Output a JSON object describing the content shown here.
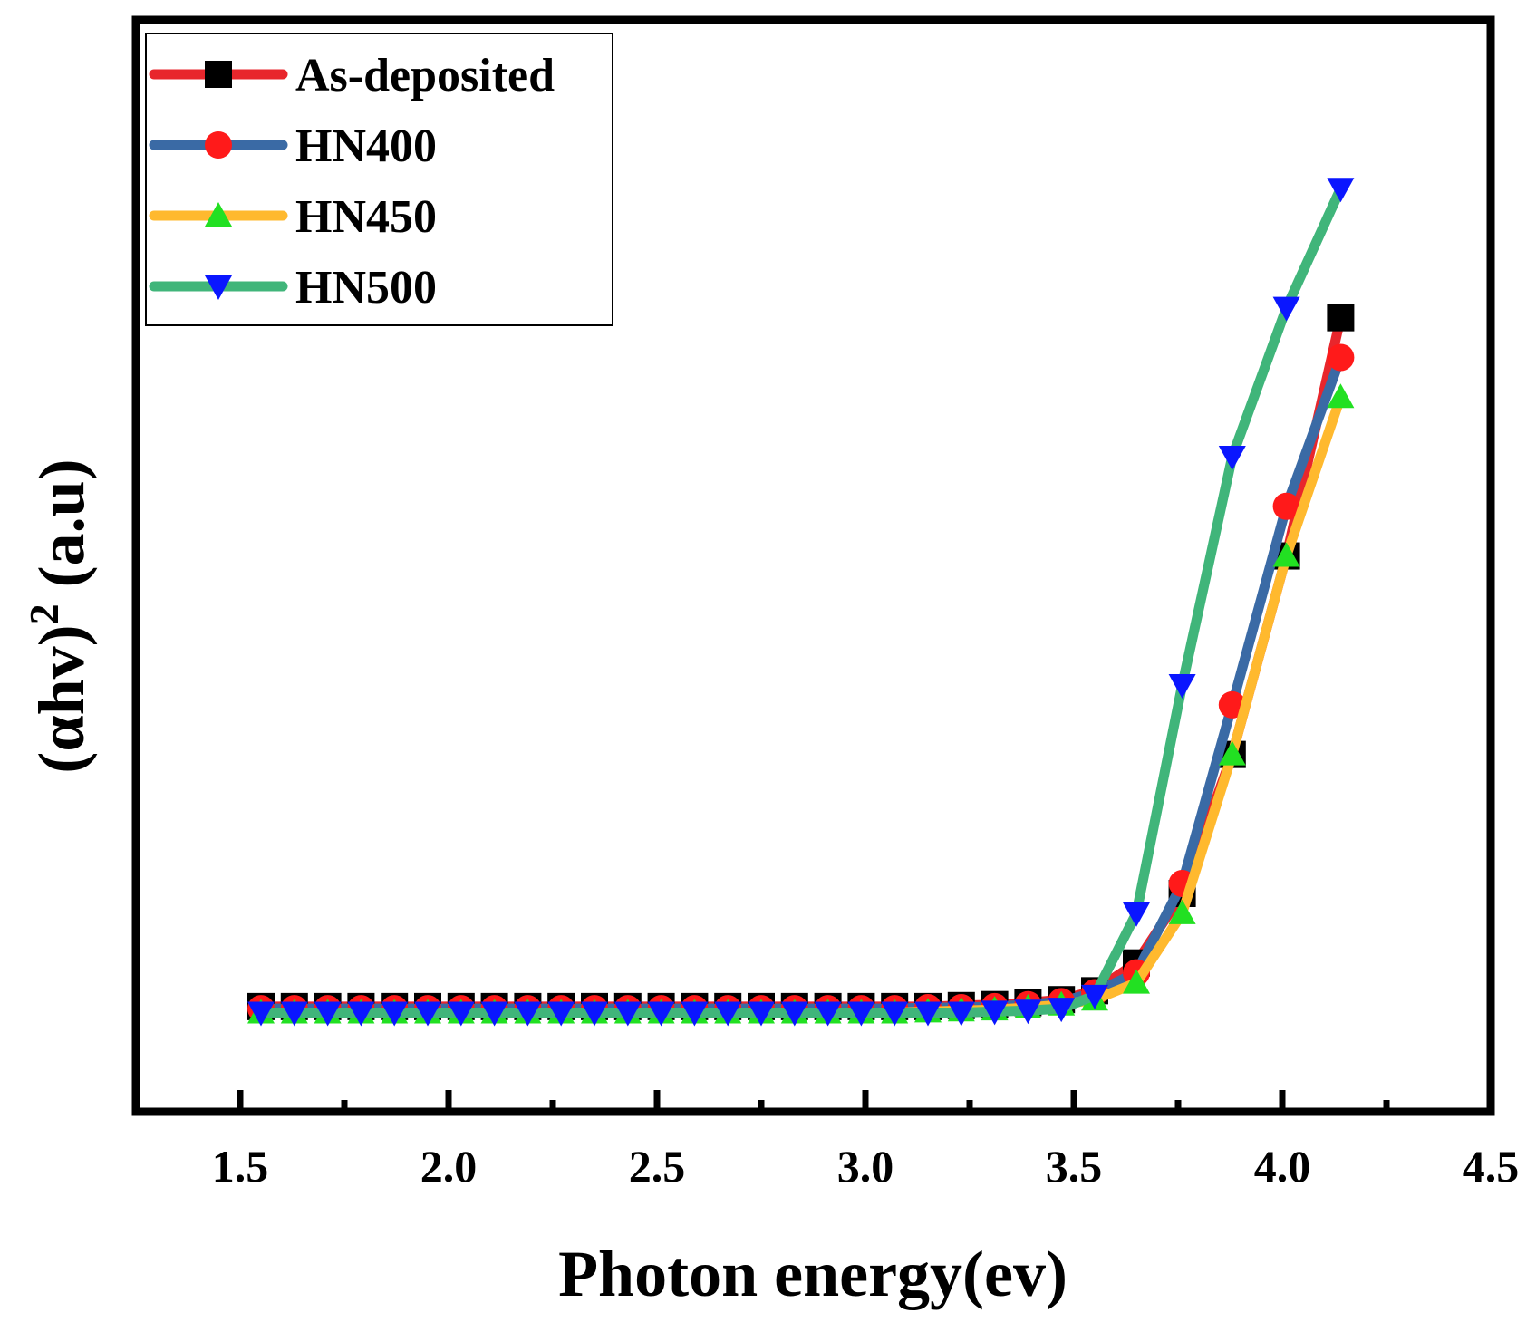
{
  "chart_data": {
    "type": "line",
    "xlabel": "Photon energy(ev)",
    "ylabel_main": "(αhv)",
    "ylabel_sup": "2",
    "ylabel_unit": " (a.u)",
    "xlim": [
      1.25,
      4.5
    ],
    "ylim": [
      -0.1,
      1.0
    ],
    "x_ticks": [
      "1.5",
      "2.0",
      "2.5",
      "3.0",
      "3.5",
      "4.0",
      "4.5"
    ],
    "y_ticks_labeled": false,
    "legend_position": "top-left",
    "series": [
      {
        "name": "As-deposited",
        "line_color": "#e8262c",
        "marker": "square",
        "marker_color": "#000000",
        "x": [
          1.55,
          1.63,
          1.71,
          1.79,
          1.87,
          1.95,
          2.03,
          2.11,
          2.19,
          2.27,
          2.35,
          2.43,
          2.51,
          2.59,
          2.67,
          2.75,
          2.83,
          2.91,
          2.99,
          3.07,
          3.15,
          3.23,
          3.31,
          3.39,
          3.47,
          3.55,
          3.65,
          3.76,
          3.88,
          4.01,
          4.14
        ],
        "y": [
          0.006,
          0.006,
          0.006,
          0.006,
          0.006,
          0.006,
          0.006,
          0.006,
          0.006,
          0.006,
          0.006,
          0.006,
          0.006,
          0.006,
          0.006,
          0.006,
          0.006,
          0.006,
          0.006,
          0.006,
          0.006,
          0.007,
          0.008,
          0.01,
          0.013,
          0.022,
          0.05,
          0.12,
          0.26,
          0.46,
          0.7
        ]
      },
      {
        "name": "HN400",
        "line_color": "#3a6aa5",
        "marker": "circle",
        "marker_color": "#ff1a1a",
        "x": [
          1.55,
          1.63,
          1.71,
          1.79,
          1.87,
          1.95,
          2.03,
          2.11,
          2.19,
          2.27,
          2.35,
          2.43,
          2.51,
          2.59,
          2.67,
          2.75,
          2.83,
          2.91,
          2.99,
          3.07,
          3.15,
          3.23,
          3.31,
          3.39,
          3.47,
          3.55,
          3.65,
          3.76,
          3.88,
          4.01,
          4.14
        ],
        "y": [
          0.004,
          0.004,
          0.004,
          0.004,
          0.004,
          0.004,
          0.004,
          0.004,
          0.004,
          0.004,
          0.004,
          0.004,
          0.004,
          0.004,
          0.004,
          0.004,
          0.004,
          0.004,
          0.004,
          0.004,
          0.005,
          0.005,
          0.006,
          0.008,
          0.011,
          0.02,
          0.04,
          0.13,
          0.31,
          0.51,
          0.66
        ]
      },
      {
        "name": "HN450",
        "line_color": "#ffb92e",
        "marker": "triangle-up",
        "marker_color": "#22e022",
        "x": [
          1.55,
          1.63,
          1.71,
          1.79,
          1.87,
          1.95,
          2.03,
          2.11,
          2.19,
          2.27,
          2.35,
          2.43,
          2.51,
          2.59,
          2.67,
          2.75,
          2.83,
          2.91,
          2.99,
          3.07,
          3.15,
          3.23,
          3.31,
          3.39,
          3.47,
          3.55,
          3.65,
          3.76,
          3.88,
          4.01,
          4.14
        ],
        "y": [
          0.0,
          0.0,
          0.0,
          0.0,
          0.0,
          0.0,
          0.0,
          0.0,
          0.0,
          0.0,
          0.0,
          0.0,
          0.0,
          0.0,
          0.0,
          0.0,
          0.0,
          0.0,
          0.0,
          0.0,
          0.001,
          0.002,
          0.003,
          0.005,
          0.008,
          0.013,
          0.03,
          0.1,
          0.26,
          0.46,
          0.62
        ]
      },
      {
        "name": "HN500",
        "line_color": "#40b57a",
        "marker": "triangle-down",
        "marker_color": "#0a16ff",
        "x": [
          1.55,
          1.63,
          1.71,
          1.79,
          1.87,
          1.95,
          2.03,
          2.11,
          2.19,
          2.27,
          2.35,
          2.43,
          2.51,
          2.59,
          2.67,
          2.75,
          2.83,
          2.91,
          2.99,
          3.07,
          3.15,
          3.23,
          3.31,
          3.39,
          3.47,
          3.55,
          3.65,
          3.76,
          3.88,
          4.01,
          4.14
        ],
        "y": [
          0.0,
          0.0,
          0.0,
          0.0,
          0.0,
          0.0,
          0.0,
          0.0,
          0.0,
          0.0,
          0.0,
          0.0,
          0.0,
          0.0,
          0.0,
          0.0,
          0.0,
          0.0,
          0.0,
          0.0,
          0.0,
          0.0,
          0.001,
          0.002,
          0.004,
          0.017,
          0.1,
          0.33,
          0.56,
          0.71,
          0.83
        ]
      }
    ]
  }
}
